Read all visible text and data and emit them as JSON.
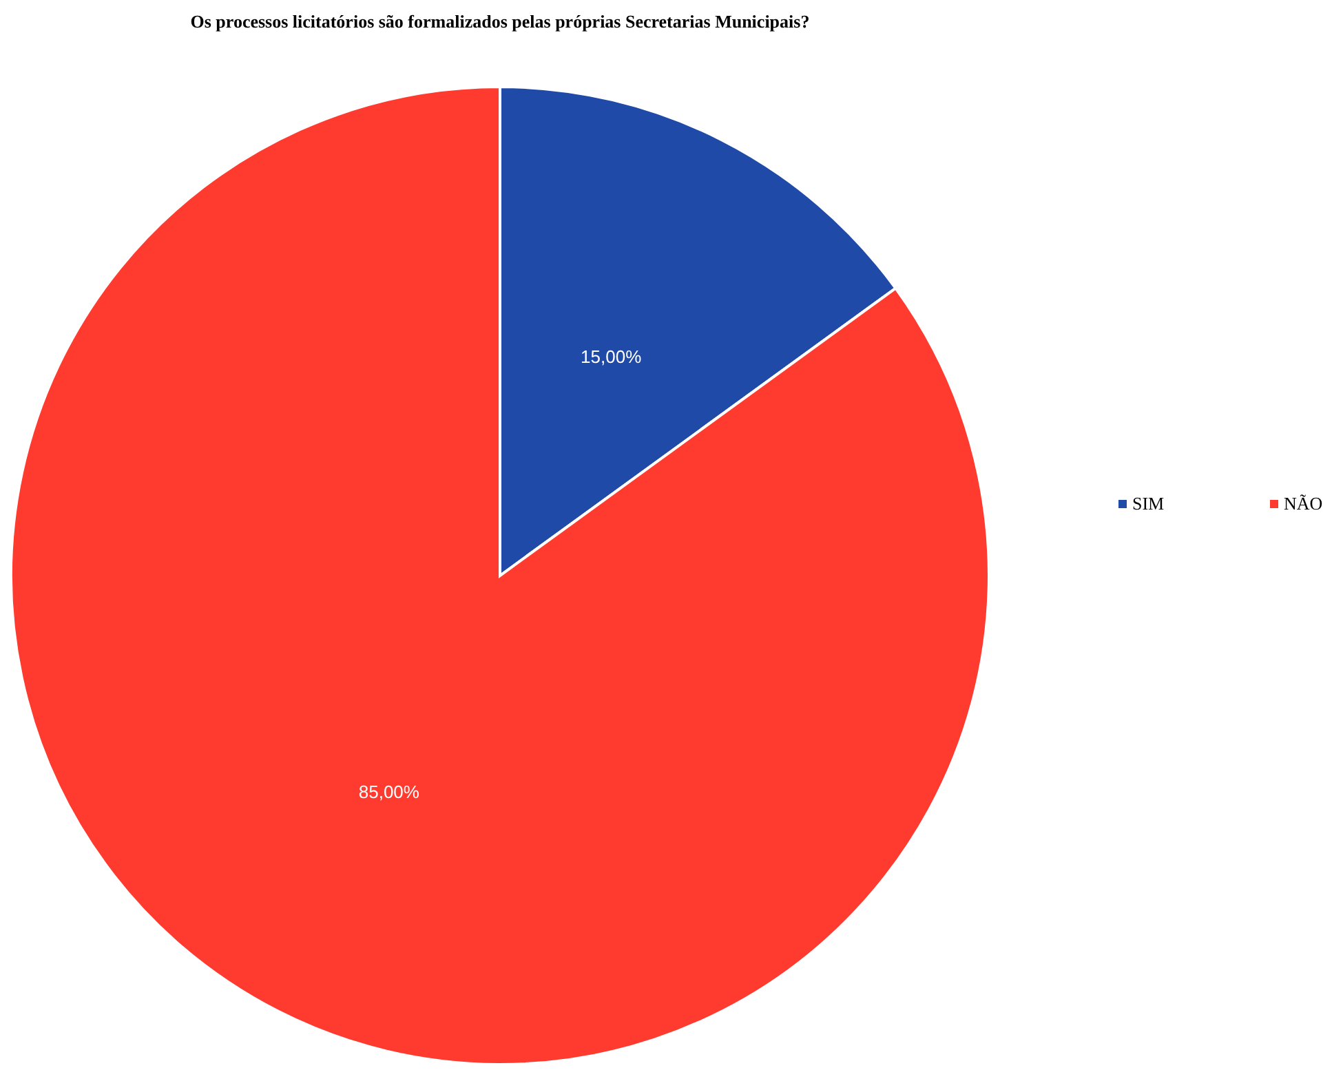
{
  "chart_data": {
    "type": "pie",
    "title": "Os processos licitatórios são formalizados pelas próprias Secretarias Municipais?",
    "categories": [
      "SIM",
      "NÃO"
    ],
    "values": [
      15,
      85
    ],
    "colors": [
      "#1f4aa8",
      "#ff3b30"
    ],
    "value_labels": [
      "15,00%",
      "85,00%"
    ],
    "legend": "right"
  }
}
